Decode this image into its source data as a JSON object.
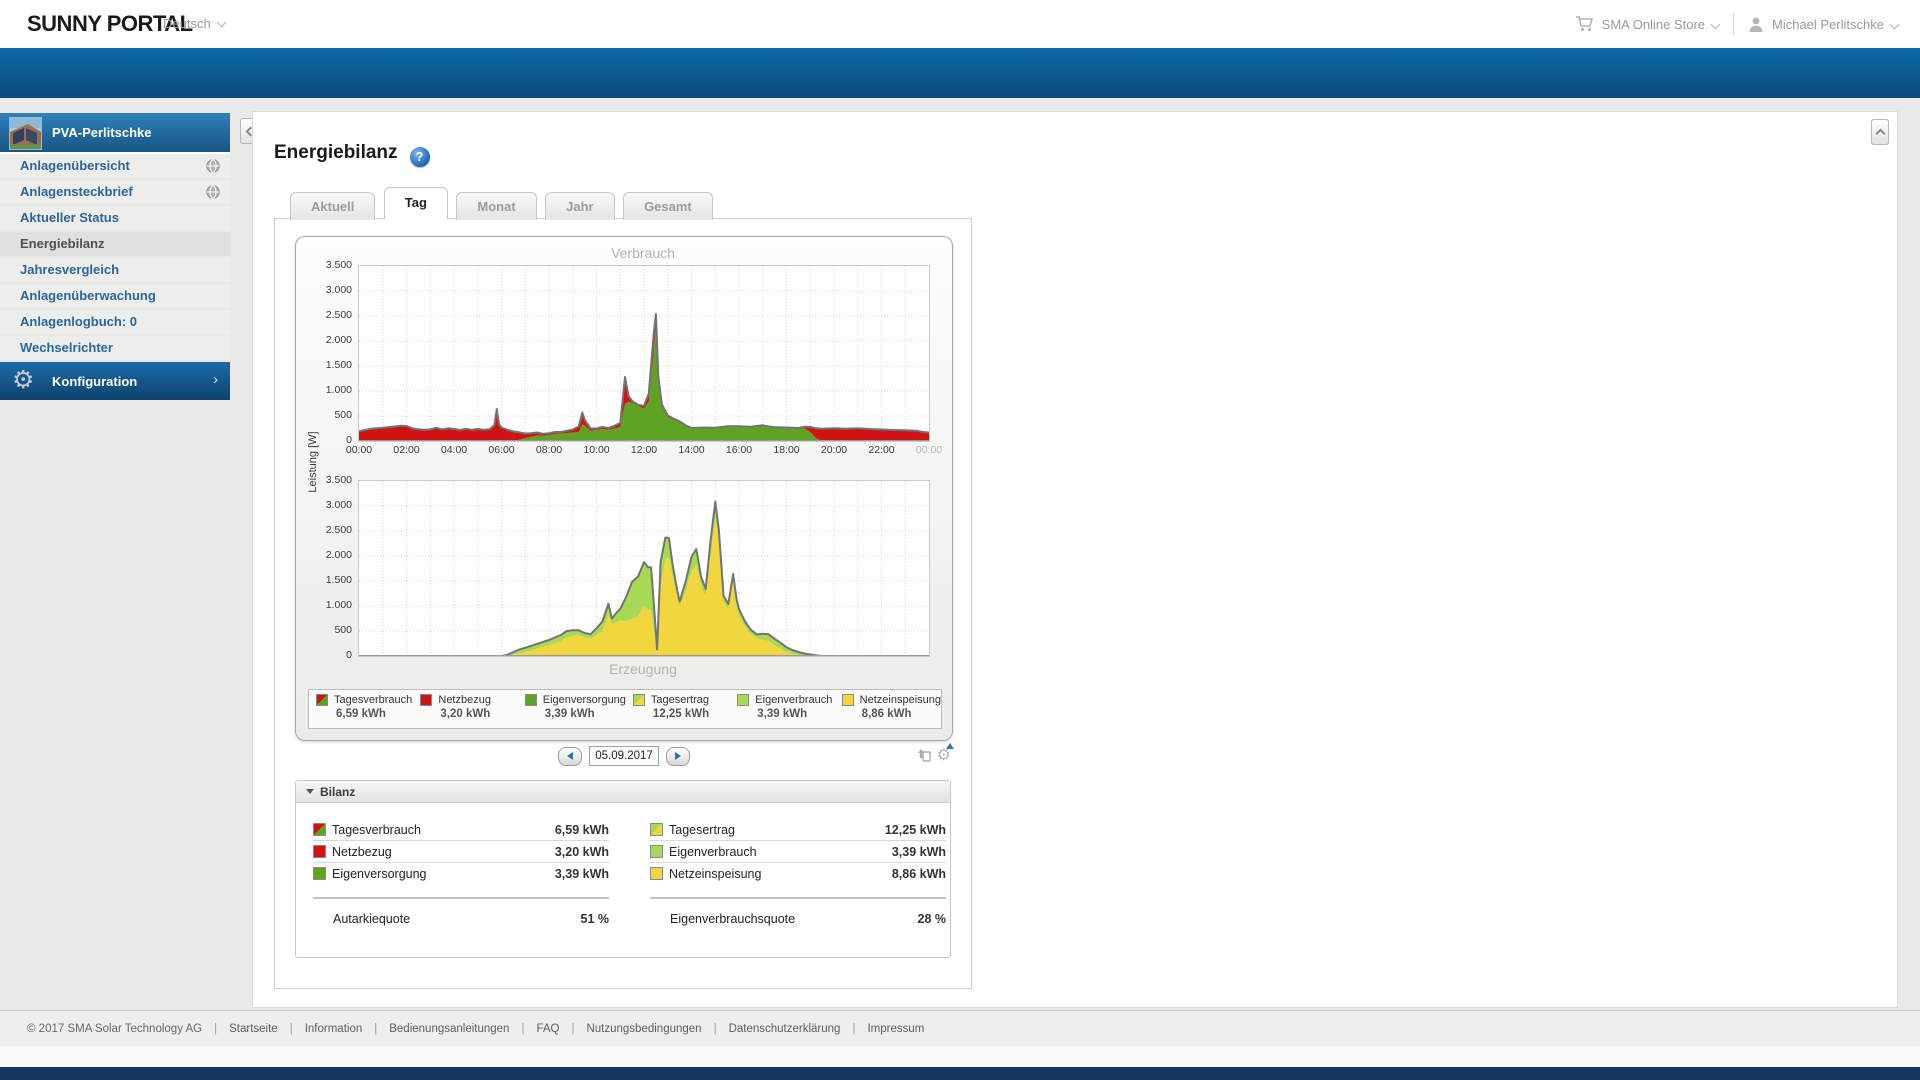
{
  "header": {
    "logo": "SUNNY PORTAL",
    "language": "Deutsch",
    "store": "SMA Online Store",
    "user": "Michael Perlitschke"
  },
  "sidebar": {
    "plant_name": "PVA-Perlitschke",
    "items": [
      {
        "label": "Anlagenübersicht"
      },
      {
        "label": "Anlagensteckbrief"
      },
      {
        "label": "Aktueller Status"
      },
      {
        "label": "Energiebilanz"
      },
      {
        "label": "Jahresvergleich"
      },
      {
        "label": "Anlagenüberwachung"
      },
      {
        "label": "Anlagenlogbuch: 0"
      },
      {
        "label": "Wechselrichter"
      }
    ],
    "config_label": "Konfiguration"
  },
  "page": {
    "title": "Energiebilanz",
    "tabs": [
      "Aktuell",
      "Tag",
      "Monat",
      "Jahr",
      "Gesamt"
    ],
    "active_tab": "Tag"
  },
  "date_nav": {
    "value": "05.09.2017"
  },
  "legend": [
    {
      "name": "Tagesverbrauch",
      "value": "6,59 kWh"
    },
    {
      "name": "Netzbezug",
      "value": "3,20 kWh"
    },
    {
      "name": "Eigenversorgung",
      "value": "3,39 kWh"
    },
    {
      "name": "Tagesertrag",
      "value": "12,25 kWh"
    },
    {
      "name": "Eigenverbrauch",
      "value": "3,39 kWh"
    },
    {
      "name": "Netzeinspeisung",
      "value": "8,86 kWh"
    }
  ],
  "bilanz": {
    "title": "Bilanz",
    "left": [
      {
        "name": "Tagesverbrauch",
        "value": "6,59 kWh"
      },
      {
        "name": "Netzbezug",
        "value": "3,20 kWh"
      },
      {
        "name": "Eigenversorgung",
        "value": "3,39 kWh"
      }
    ],
    "right": [
      {
        "name": "Tagesertrag",
        "value": "12,25 kWh"
      },
      {
        "name": "Eigenverbrauch",
        "value": "3,39 kWh"
      },
      {
        "name": "Netzeinspeisung",
        "value": "8,86 kWh"
      }
    ],
    "left_quote": {
      "label": "Autarkiequote",
      "value": "51 %"
    },
    "right_quote": {
      "label": "Eigenverbrauchsquote",
      "value": "28 %"
    }
  },
  "footer": {
    "copyright": "© 2017 SMA Solar Technology AG",
    "links": [
      "Startseite",
      "Information",
      "Bedienungsanleitungen",
      "FAQ",
      "Nutzungsbedingungen",
      "Datenschutzerklärung",
      "Impressum"
    ]
  },
  "colors": {
    "red": "#cf1312",
    "green": "#5ea321",
    "light_green": "#a7d954",
    "yellow": "#f1d63e",
    "outline_gray": "#737373",
    "nav_blue_top": "#0c69a8",
    "nav_blue_bottom": "#0b4b7a",
    "sidebar_link_blue": "#29679e"
  },
  "chart_data": [
    {
      "type": "area",
      "stacked": true,
      "title": "Verbrauch",
      "ylabel": "Leistung [W]",
      "ylim": [
        0,
        3500
      ],
      "yticks": [
        "0",
        "500",
        "1.000",
        "1.500",
        "2.000",
        "2.500",
        "3.000",
        "3.500"
      ],
      "xticks": [
        "00:00",
        "02:00",
        "04:00",
        "06:00",
        "08:00",
        "10:00",
        "12:00",
        "14:00",
        "16:00",
        "18:00",
        "20:00",
        "22:00",
        "00:00"
      ],
      "outline_series": "Tagesverbrauch",
      "outline_color": "#737373",
      "x": [
        0,
        0.5,
        1,
        1.5,
        1.75,
        2,
        2.25,
        2.5,
        2.75,
        3,
        3.25,
        3.5,
        3.75,
        4,
        4.25,
        4.5,
        4.75,
        5,
        5.25,
        5.5,
        5.7,
        5.8,
        5.9,
        6,
        6.25,
        6.5,
        6.75,
        7,
        7.25,
        7.5,
        7.75,
        8,
        8.25,
        8.5,
        8.75,
        9,
        9.25,
        9.4,
        9.5,
        9.75,
        10,
        10.25,
        10.5,
        10.75,
        11,
        11.2,
        11.35,
        11.5,
        11.75,
        12,
        12.2,
        12.4,
        12.5,
        12.6,
        12.75,
        13,
        13.25,
        13.5,
        13.75,
        14,
        14.5,
        15,
        15.5,
        16,
        16.5,
        17,
        17.5,
        18,
        18.5,
        18.75,
        19,
        19.25,
        19.5,
        20,
        20.5,
        21,
        21.5,
        22,
        22.5,
        23,
        23.5,
        23.75,
        24
      ],
      "series": [
        {
          "name": "Eigenversorgung",
          "color": "#5ea321",
          "values": [
            0,
            0,
            0,
            0,
            0,
            0,
            0,
            0,
            0,
            0,
            0,
            0,
            0,
            0,
            0,
            0,
            0,
            0,
            0,
            0,
            0,
            0,
            0,
            0,
            0,
            0,
            25,
            55,
            85,
            115,
            105,
            120,
            140,
            150,
            160,
            170,
            175,
            330,
            310,
            205,
            220,
            240,
            225,
            250,
            280,
            740,
            790,
            760,
            700,
            650,
            790,
            1700,
            2340,
            1200,
            690,
            480,
            420,
            375,
            300,
            245,
            255,
            250,
            285,
            280,
            270,
            305,
            260,
            255,
            240,
            255,
            175,
            55,
            0,
            0,
            0,
            0,
            0,
            0,
            0,
            0,
            0,
            0,
            0
          ]
        },
        {
          "name": "Netzbezug",
          "color": "#cf1312",
          "values": [
            195,
            245,
            265,
            290,
            305,
            300,
            255,
            235,
            225,
            230,
            265,
            235,
            255,
            240,
            220,
            245,
            225,
            240,
            225,
            235,
            320,
            640,
            330,
            270,
            225,
            190,
            150,
            95,
            70,
            55,
            40,
            35,
            40,
            30,
            45,
            60,
            115,
            240,
            120,
            45,
            30,
            40,
            35,
            50,
            85,
            540,
            110,
            40,
            25,
            55,
            160,
            400,
            200,
            100,
            45,
            30,
            25,
            20,
            15,
            15,
            15,
            15,
            10,
            15,
            15,
            10,
            15,
            15,
            20,
            30,
            105,
            200,
            245,
            255,
            245,
            255,
            240,
            230,
            220,
            215,
            205,
            180,
            170
          ]
        }
      ]
    },
    {
      "type": "area",
      "stacked": true,
      "title": "Erzeugung",
      "ylabel": "Leistung [W]",
      "ylim": [
        0,
        3500
      ],
      "yticks": [
        "0",
        "500",
        "1.000",
        "1.500",
        "2.000",
        "2.500",
        "3.000",
        "3.500"
      ],
      "xticks": [
        "00:00",
        "02:00",
        "04:00",
        "06:00",
        "08:00",
        "10:00",
        "12:00",
        "14:00",
        "16:00",
        "18:00",
        "20:00",
        "22:00",
        "00:00"
      ],
      "outline_series": "Tagesertrag",
      "outline_color": "#737373",
      "x": [
        0,
        6,
        6.25,
        6.5,
        6.75,
        7,
        7.5,
        8,
        8.5,
        8.75,
        9,
        9.25,
        9.5,
        9.75,
        10,
        10.25,
        10.5,
        10.65,
        10.85,
        11,
        11.25,
        11.5,
        11.75,
        12,
        12.15,
        12.3,
        12.45,
        12.55,
        12.7,
        12.9,
        13.05,
        13.2,
        13.35,
        13.5,
        13.75,
        14,
        14.2,
        14.4,
        14.6,
        14.8,
        15,
        15.15,
        15.35,
        15.55,
        15.75,
        15.9,
        16,
        16.25,
        16.5,
        16.75,
        17,
        17.25,
        17.5,
        17.75,
        18,
        18.25,
        18.5,
        18.75,
        19,
        19.25,
        19.5,
        24
      ],
      "series": [
        {
          "name": "Netzeinspeisung",
          "color": "#f1d63e",
          "values": [
            0,
            0,
            0,
            25,
            55,
            80,
            150,
            215,
            295,
            370,
            400,
            415,
            375,
            345,
            415,
            495,
            815,
            635,
            680,
            715,
            695,
            745,
            795,
            990,
            940,
            900,
            420,
            70,
            1390,
            1940,
            1970,
            1600,
            1280,
            990,
            1290,
            1690,
            1840,
            1390,
            1190,
            1990,
            2790,
            2290,
            1090,
            940,
            1490,
            990,
            790,
            590,
            425,
            345,
            325,
            295,
            215,
            145,
            75,
            40,
            20,
            10,
            5,
            0,
            0,
            0
          ]
        },
        {
          "name": "Eigenverbrauch",
          "color": "#a7d954",
          "values": [
            0,
            0,
            25,
            55,
            75,
            85,
            95,
            105,
            125,
            130,
            115,
            100,
            85,
            90,
            140,
            195,
            230,
            115,
            190,
            230,
            490,
            740,
            795,
            890,
            840,
            870,
            380,
            60,
            490,
            430,
            390,
            250,
            150,
            100,
            195,
            295,
            300,
            200,
            150,
            300,
            300,
            240,
            110,
            100,
            150,
            140,
            150,
            105,
            100,
            85,
            120,
            140,
            130,
            120,
            100,
            80,
            60,
            40,
            25,
            12,
            0,
            0
          ]
        }
      ]
    }
  ]
}
